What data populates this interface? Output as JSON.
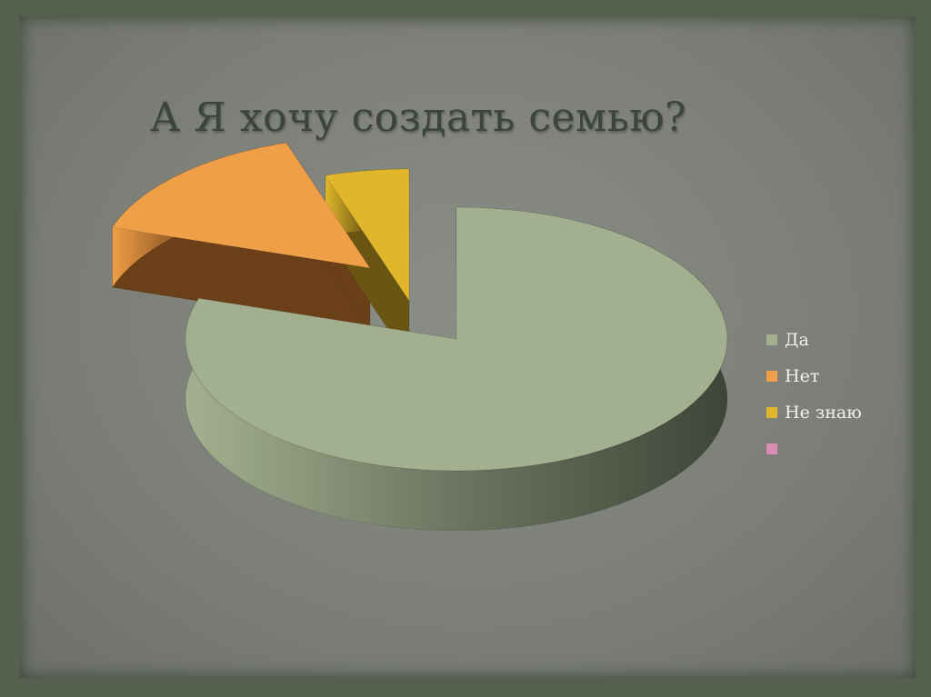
{
  "chart_data": {
    "type": "pie",
    "title": "А Я хочу создать семью?",
    "three_d": true,
    "exploded": true,
    "legend_position": "right",
    "series": [
      {
        "name": "Да",
        "value": 80,
        "color": "#a3b08f",
        "side_color": "#6c7560"
      },
      {
        "name": "Нет",
        "value": 15,
        "color": "#ef9f47",
        "side_color": "#6b3f18"
      },
      {
        "name": "Не знаю",
        "value": 5,
        "color": "#e0b72a",
        "side_color": "#6a5612"
      },
      {
        "name": "",
        "value": 0,
        "color": "#d98cb4",
        "side_color": "#8a5570"
      }
    ]
  }
}
